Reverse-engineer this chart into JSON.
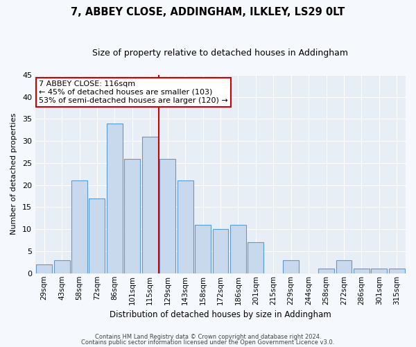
{
  "title": "7, ABBEY CLOSE, ADDINGHAM, ILKLEY, LS29 0LT",
  "subtitle": "Size of property relative to detached houses in Addingham",
  "xlabel": "Distribution of detached houses by size in Addingham",
  "ylabel": "Number of detached properties",
  "categories": [
    "29sqm",
    "43sqm",
    "58sqm",
    "72sqm",
    "86sqm",
    "101sqm",
    "115sqm",
    "129sqm",
    "143sqm",
    "158sqm",
    "172sqm",
    "186sqm",
    "201sqm",
    "215sqm",
    "229sqm",
    "244sqm",
    "258sqm",
    "272sqm",
    "286sqm",
    "301sqm",
    "315sqm"
  ],
  "values": [
    2,
    3,
    21,
    17,
    34,
    26,
    31,
    26,
    21,
    11,
    10,
    11,
    7,
    0,
    3,
    0,
    1,
    3,
    1,
    1,
    1
  ],
  "bar_color": "#c9d9ed",
  "bar_edge_color": "#5b9bd5",
  "vline_color": "#cc0000",
  "annotation_text": "7 ABBEY CLOSE: 116sqm\n← 45% of detached houses are smaller (103)\n53% of semi-detached houses are larger (120) →",
  "annotation_box_color": "#ffffff",
  "annotation_box_edge": "#cc0000",
  "ylim": [
    0,
    45
  ],
  "yticks": [
    0,
    5,
    10,
    15,
    20,
    25,
    30,
    35,
    40,
    45
  ],
  "background_color": "#e8eef5",
  "grid_color": "#ffffff",
  "fig_background": "#f5f8fc",
  "footer_line1": "Contains HM Land Registry data © Crown copyright and database right 2024.",
  "footer_line2": "Contains public sector information licensed under the Open Government Licence v3.0."
}
